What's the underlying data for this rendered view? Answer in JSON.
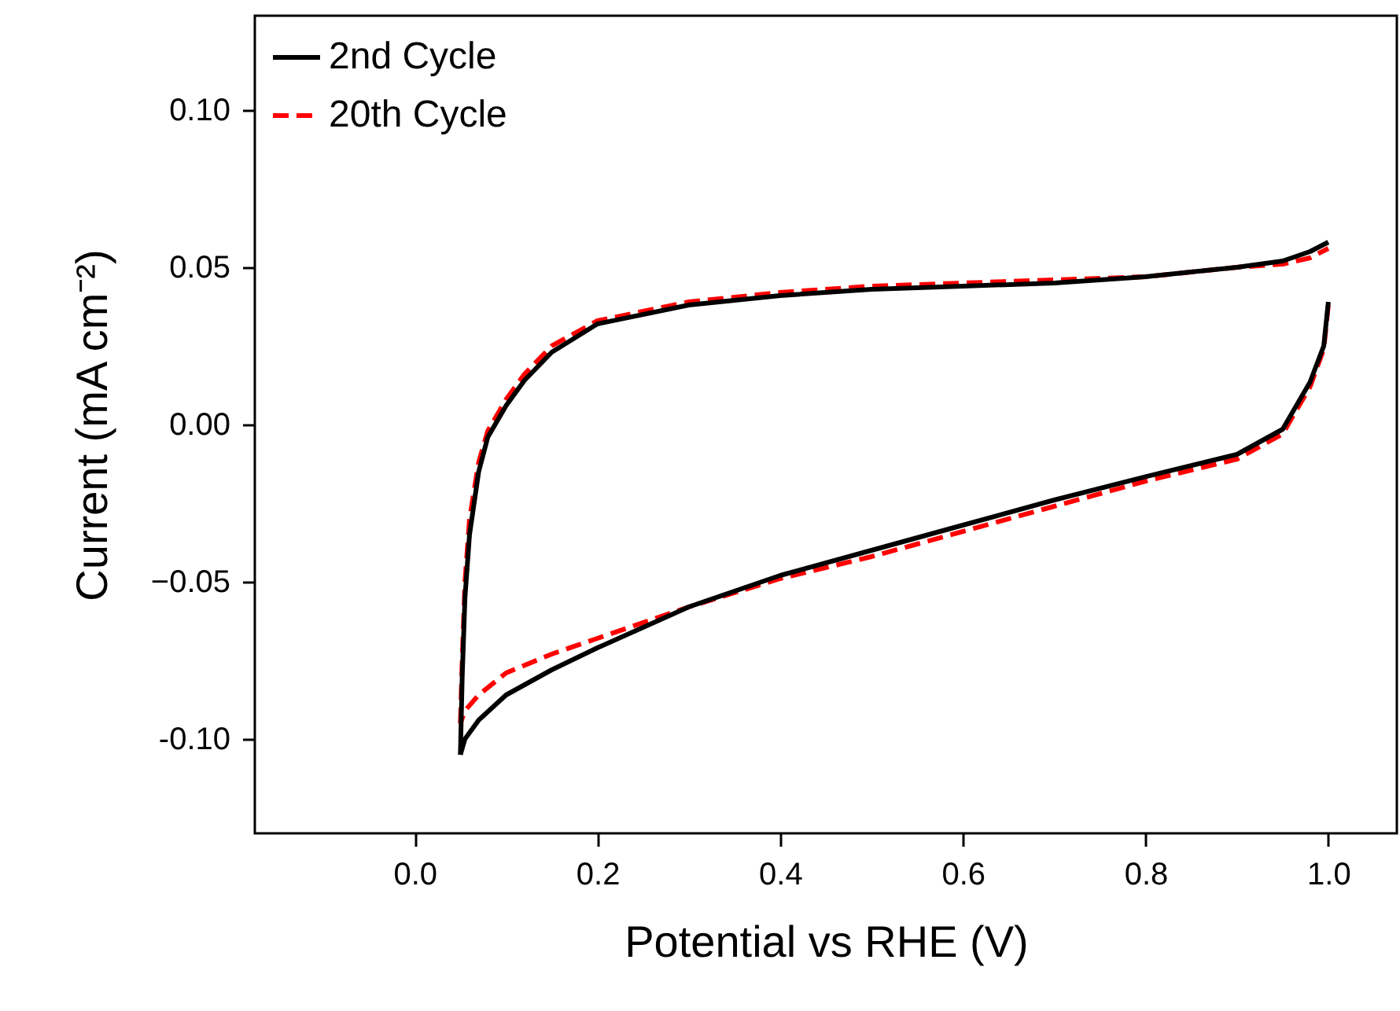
{
  "chart_data": {
    "type": "line",
    "xlabel": "Potential vs RHE (V)",
    "ylabel": "Current (mA cm⁻²)",
    "xlim": [
      -0.175,
      1.075
    ],
    "ylim": [
      -0.13,
      0.13
    ],
    "xticks": [
      {
        "value": 0,
        "label": "0.0"
      },
      0.2,
      0.4,
      0.6,
      0.8,
      {
        "value": 1,
        "label": "1.0"
      }
    ],
    "yticks": [
      {
        "value": -0.1,
        "label": "-0.10"
      },
      -0.05,
      {
        "value": 0,
        "label": "0.00"
      },
      0.05,
      {
        "value": 0.1,
        "label": "0.10"
      }
    ],
    "grid": false,
    "legend": "top left",
    "series": [
      {
        "name": "20th Cycle",
        "color": "#ff0000",
        "line_style": "dashed",
        "x": [
          0.05,
          0.052,
          0.055,
          0.06,
          0.07,
          0.08,
          0.1,
          0.12,
          0.15,
          0.2,
          0.3,
          0.4,
          0.5,
          0.6,
          0.7,
          0.8,
          0.9,
          0.95,
          0.98,
          1.0
        ],
        "values": [
          -0.095,
          -0.075,
          -0.05,
          -0.03,
          -0.012,
          -0.002,
          0.008,
          0.016,
          0.025,
          0.033,
          0.039,
          0.042,
          0.044,
          0.045,
          0.046,
          0.047,
          0.05,
          0.051,
          0.053,
          0.056
        ]
      },
      {
        "color": "#ff0000",
        "line_style": "dashed",
        "x": [
          1.0,
          0.995,
          0.98,
          0.95,
          0.9,
          0.8,
          0.7,
          0.6,
          0.5,
          0.4,
          0.3,
          0.2,
          0.15,
          0.1,
          0.07,
          0.055,
          0.05
        ],
        "values": [
          0.038,
          0.024,
          0.012,
          -0.003,
          -0.011,
          -0.018,
          -0.026,
          -0.034,
          -0.042,
          -0.049,
          -0.058,
          -0.068,
          -0.073,
          -0.079,
          -0.086,
          -0.091,
          -0.095
        ]
      },
      {
        "name": "2nd Cycle",
        "color": "#000000",
        "line_style": "solid",
        "x": [
          0.05,
          0.052,
          0.055,
          0.06,
          0.07,
          0.08,
          0.1,
          0.12,
          0.15,
          0.2,
          0.3,
          0.4,
          0.5,
          0.6,
          0.7,
          0.8,
          0.9,
          0.95,
          0.98,
          1.0
        ],
        "values": [
          -0.105,
          -0.08,
          -0.055,
          -0.035,
          -0.015,
          -0.004,
          0.006,
          0.014,
          0.023,
          0.032,
          0.038,
          0.041,
          0.043,
          0.044,
          0.045,
          0.047,
          0.05,
          0.052,
          0.055,
          0.058
        ]
      },
      {
        "color": "#000000",
        "line_style": "solid",
        "x": [
          1.0,
          0.995,
          0.98,
          0.95,
          0.9,
          0.8,
          0.7,
          0.6,
          0.5,
          0.4,
          0.3,
          0.2,
          0.15,
          0.1,
          0.07,
          0.055,
          0.05
        ],
        "values": [
          0.039,
          0.025,
          0.0135,
          -0.0015,
          -0.0095,
          -0.0166,
          -0.024,
          -0.032,
          -0.04,
          -0.048,
          -0.058,
          -0.071,
          -0.078,
          -0.086,
          -0.094,
          -0.1,
          -0.105
        ]
      }
    ]
  }
}
